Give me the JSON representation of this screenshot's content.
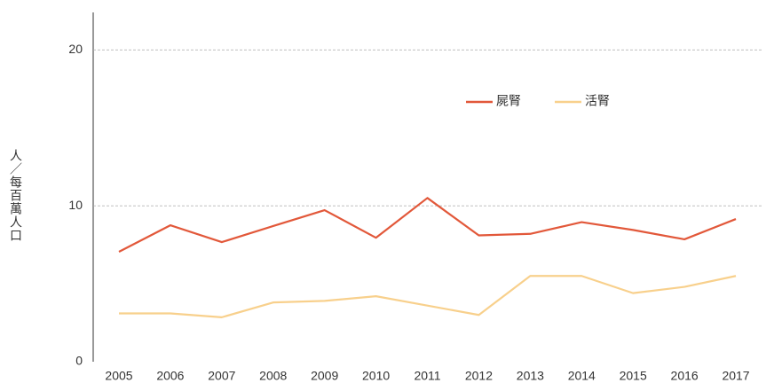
{
  "chart_data": {
    "type": "line",
    "y_label": "人／每百萬人口",
    "categories": [
      "2005",
      "2006",
      "2007",
      "2008",
      "2009",
      "2010",
      "2011",
      "2012",
      "2013",
      "2014",
      "2015",
      "2016",
      "2017"
    ],
    "series": [
      {
        "name": "屍腎",
        "color": "#e2583a",
        "values": [
          7.05,
          8.75,
          7.67,
          8.7,
          9.72,
          7.95,
          10.5,
          8.1,
          8.2,
          8.95,
          8.45,
          7.85,
          9.15
        ]
      },
      {
        "name": "活腎",
        "color": "#f8d08c",
        "values": [
          3.1,
          3.1,
          2.85,
          3.8,
          3.9,
          4.2,
          3.6,
          3.0,
          5.5,
          5.5,
          4.4,
          4.8,
          5.5
        ]
      }
    ],
    "ylim": [
      0,
      22.4
    ],
    "yticks": [
      0,
      10,
      20
    ],
    "grid": true
  }
}
